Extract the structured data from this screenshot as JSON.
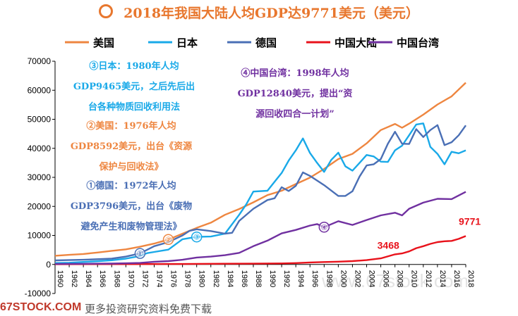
{
  "title": "2018年我国大陆人均GDP达9771美元（美元）",
  "footer": {
    "logo": "67STOCK.COM",
    "text": "更多投资研究资料免费下载"
  },
  "watermark": "www.67stock.com",
  "colors": {
    "title": "#e8772e"
  },
  "chart_data": {
    "type": "line",
    "ylim": [
      -10000,
      70000
    ],
    "yticks": [
      -10000,
      0,
      10000,
      20000,
      30000,
      40000,
      50000,
      60000,
      70000
    ],
    "ytick_labels": [
      "-10000",
      "0",
      "10000",
      "20000",
      "30000",
      "40000",
      "50000",
      "60000",
      "70000"
    ],
    "xlim": [
      1960,
      2018
    ],
    "xtick_labels": [
      "1960",
      "1962",
      "1964",
      "1966",
      "1968",
      "1970",
      "1972",
      "1974",
      "1976",
      "1978",
      "1980",
      "1982",
      "1984",
      "1986",
      "1988",
      "1990",
      "1992",
      "1994",
      "1996",
      "1998",
      "2000",
      "2002",
      "2004",
      "2006",
      "2008",
      "2010",
      "2012",
      "2014",
      "2016",
      "2018"
    ],
    "legend_position": "top",
    "series": [
      {
        "name": "美国",
        "color": "#ee8640",
        "x": [
          1960,
          1962,
          1964,
          1966,
          1968,
          1970,
          1972,
          1974,
          1976,
          1978,
          1980,
          1982,
          1984,
          1986,
          1988,
          1990,
          1992,
          1994,
          1996,
          1998,
          2000,
          2002,
          2004,
          2006,
          2008,
          2009,
          2010,
          2012,
          2014,
          2016,
          2018
        ],
        "y": [
          3000,
          3300,
          3600,
          4100,
          4700,
          5200,
          6100,
          7200,
          8600,
          10600,
          12600,
          14400,
          17100,
          19100,
          21400,
          23900,
          25400,
          27700,
          29900,
          32900,
          36300,
          38100,
          41700,
          46300,
          48400,
          47100,
          48500,
          51600,
          55100,
          57900,
          62600
        ]
      },
      {
        "name": "日本",
        "color": "#19a9e8",
        "x": [
          1960,
          1962,
          1964,
          1966,
          1968,
          1970,
          1972,
          1973,
          1974,
          1976,
          1978,
          1979,
          1980,
          1982,
          1984,
          1986,
          1987,
          1988,
          1990,
          1991,
          1992,
          1993,
          1994,
          1995,
          1996,
          1997,
          1998,
          1999,
          2000,
          2001,
          2002,
          2003,
          2004,
          2005,
          2006,
          2007,
          2008,
          2009,
          2010,
          2011,
          2012,
          2013,
          2014,
          2015,
          2016,
          2017,
          2018
        ],
        "y": [
          500,
          600,
          850,
          1100,
          1450,
          2000,
          2900,
          3900,
          4300,
          5100,
          8700,
          9100,
          9500,
          9600,
          10600,
          17100,
          20700,
          25100,
          25400,
          28500,
          31500,
          35800,
          39300,
          43400,
          38400,
          35000,
          31900,
          36000,
          38500,
          33800,
          32300,
          35000,
          37700,
          37200,
          35400,
          35300,
          39300,
          40900,
          44500,
          48200,
          48600,
          40500,
          38100,
          34500,
          38800,
          38300,
          39300
        ]
      },
      {
        "name": "德国",
        "color": "#4a6fb5",
        "x": [
          1960,
          1964,
          1968,
          1970,
          1972,
          1974,
          1976,
          1978,
          1979,
          1980,
          1982,
          1984,
          1985,
          1986,
          1988,
          1990,
          1991,
          1992,
          1993,
          1994,
          1995,
          1996,
          1998,
          2000,
          2001,
          2002,
          2003,
          2004,
          2005,
          2006,
          2007,
          2008,
          2009,
          2010,
          2011,
          2012,
          2013,
          2014,
          2015,
          2016,
          2017,
          2018
        ],
        "y": [
          1400,
          1600,
          2000,
          2700,
          3800,
          6300,
          7700,
          10000,
          11600,
          12100,
          11500,
          10600,
          10900,
          15000,
          19200,
          22200,
          22800,
          26600,
          25300,
          27100,
          31700,
          30500,
          27300,
          23600,
          23600,
          25200,
          30300,
          34100,
          34500,
          36300,
          41600,
          45700,
          41600,
          41500,
          46600,
          43900,
          46300,
          48000,
          41100,
          42100,
          44500,
          47900
        ]
      },
      {
        "name": "中国大陆",
        "color": "#e8121b",
        "x": [
          1960,
          1970,
          1978,
          1980,
          1984,
          1988,
          1990,
          1992,
          1994,
          1996,
          1998,
          2000,
          2002,
          2004,
          2006,
          2008,
          2009,
          2010,
          2011,
          2012,
          2013,
          2014,
          2015,
          2016,
          2017,
          2018
        ],
        "y": [
          90,
          110,
          160,
          200,
          250,
          280,
          320,
          360,
          470,
          700,
          830,
          960,
          1150,
          1500,
          2100,
          3468,
          3800,
          4500,
          5600,
          6300,
          7100,
          7700,
          8000,
          8100,
          8800,
          9771
        ]
      },
      {
        "name": "中国台湾",
        "color": "#7030a0",
        "x": [
          1960,
          1964,
          1968,
          1970,
          1972,
          1974,
          1976,
          1978,
          1980,
          1982,
          1984,
          1986,
          1988,
          1990,
          1992,
          1994,
          1996,
          1997,
          1998,
          2000,
          2002,
          2004,
          2006,
          2008,
          2009,
          2010,
          2012,
          2014,
          2016,
          2018
        ],
        "y": [
          150,
          230,
          300,
          400,
          520,
          900,
          1150,
          1600,
          2400,
          2700,
          3200,
          4000,
          6300,
          8200,
          10700,
          11900,
          13400,
          13900,
          12840,
          14900,
          13600,
          15300,
          16900,
          17800,
          16900,
          19200,
          21300,
          22600,
          22500,
          25000
        ]
      }
    ],
    "data_labels": [
      {
        "text": "3468",
        "x": 2008,
        "y": 3468,
        "color": "#e8121b"
      },
      {
        "text": "9771",
        "x": 2018,
        "y": 9771,
        "color": "#e8121b"
      }
    ],
    "annotations": [
      {
        "marker": "③",
        "lines": [
          "③日本：1980年人均",
          "GDP9465美元，之后先后出",
          "台各种物质回收利用法"
        ],
        "color": "#19a9e8",
        "x": 1980,
        "y": 9465
      },
      {
        "marker": "②",
        "lines": [
          "②美国：1976年人均",
          "GDP8592美元，出台《资源",
          "保护与回收法》"
        ],
        "color": "#ee8640",
        "x": 1976,
        "y": 8592
      },
      {
        "marker": "①",
        "lines": [
          "①德国：1972年人均",
          "GDP3796美元，出台《废物",
          "避免产生和废物管理法》"
        ],
        "color": "#4a6fb5",
        "x": 1972,
        "y": 3796
      },
      {
        "marker": "④",
        "lines": [
          "④中国台湾：1998年人均",
          "GDP12840美元，提出“资",
          "源回收四合一计划”"
        ],
        "color": "#7030a0",
        "x": 1998,
        "y": 12840
      }
    ]
  }
}
